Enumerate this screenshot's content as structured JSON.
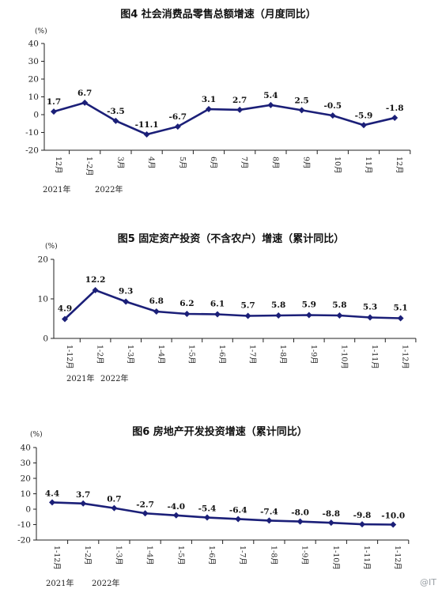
{
  "watermark": "@IT",
  "chart_data": [
    {
      "type": "line",
      "title": "图4   社会消费品零售总额增速（月度同比）",
      "unit": "(%)",
      "categories": [
        "12月",
        "1-2月",
        "3月",
        "4月",
        "5月",
        "6月",
        "7月",
        "8月",
        "9月",
        "10月",
        "11月",
        "12月"
      ],
      "years": [
        "2021年",
        "2022年"
      ],
      "values": [
        1.7,
        6.7,
        -3.5,
        -11.1,
        -6.7,
        3.1,
        2.7,
        5.4,
        2.5,
        -0.5,
        -5.9,
        -1.8
      ],
      "value_labels": [
        "1.7",
        "6.7",
        "-3.5",
        "-11.1",
        "-6.7",
        "3.1",
        "2.7",
        "5.4",
        "2.5",
        "-0.5",
        "-5.9",
        "-1.8"
      ],
      "yticks": [
        "40",
        "30",
        "20",
        "10",
        "0",
        "-10",
        "-20"
      ],
      "ylim": [
        -20,
        40
      ],
      "line_color": "#1b1f78"
    },
    {
      "type": "line",
      "title": "图5   固定资产投资（不含农户）增速（累计同比）",
      "unit": "(%)",
      "categories": [
        "1-12月",
        "1-2月",
        "1-3月",
        "1-4月",
        "1-5月",
        "1-6月",
        "1-7月",
        "1-8月",
        "1-9月",
        "1-10月",
        "1-11月",
        "1-12月"
      ],
      "years": [
        "2021年",
        "2022年"
      ],
      "values": [
        4.9,
        12.2,
        9.3,
        6.8,
        6.2,
        6.1,
        5.7,
        5.8,
        5.9,
        5.8,
        5.3,
        5.1
      ],
      "value_labels": [
        "4.9",
        "12.2",
        "9.3",
        "6.8",
        "6.2",
        "6.1",
        "5.7",
        "5.8",
        "5.9",
        "5.8",
        "5.3",
        "5.1"
      ],
      "yticks": [
        "20",
        "10",
        "0"
      ],
      "ylim": [
        0,
        20
      ],
      "line_color": "#1b1f78"
    },
    {
      "type": "line",
      "title": "图6   房地产开发投资增速（累计同比）",
      "unit": "(%)",
      "categories": [
        "1-12月",
        "1-2月",
        "1-3月",
        "1-4月",
        "1-5月",
        "1-6月",
        "1-7月",
        "1-8月",
        "1-9月",
        "1-10月",
        "1-11月",
        "1-12月"
      ],
      "years": [
        "2021年",
        "2022年"
      ],
      "values": [
        4.4,
        3.7,
        0.7,
        -2.7,
        -4.0,
        -5.4,
        -6.4,
        -7.4,
        -8.0,
        -8.8,
        -9.8,
        -10.0
      ],
      "value_labels": [
        "4.4",
        "3.7",
        "0.7",
        "-2.7",
        "-4.0",
        "-5.4",
        "-6.4",
        "-7.4",
        "-8.0",
        "-8.8",
        "-9.8",
        "-10.0"
      ],
      "yticks": [
        "40",
        "30",
        "20",
        "10",
        "0",
        "-10",
        "-20"
      ],
      "ylim": [
        -20,
        40
      ],
      "line_color": "#1b1f78"
    }
  ]
}
